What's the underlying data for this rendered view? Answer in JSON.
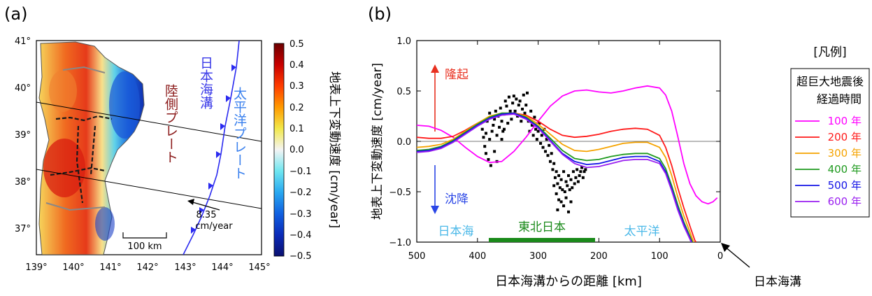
{
  "panel_a": {
    "label": "(a)",
    "lon_ticks": [
      "139°",
      "140°",
      "141°",
      "142°",
      "143°",
      "144°",
      "145°"
    ],
    "lat_ticks": [
      "41°",
      "40°",
      "39°",
      "38°",
      "37°"
    ],
    "scale_bar": "100 km",
    "arrow_value": "8.35",
    "arrow_unit": "cm/year",
    "land_plate": "陸側プレート",
    "trench": "日本海溝",
    "pacific_plate": "太平洋プレート",
    "colorbar": {
      "ticks": [
        "0.5",
        "0.4",
        "0.3",
        "0.2",
        "0.1",
        "0.0",
        "−0.1",
        "−0.2",
        "−0.3",
        "−0.4",
        "−0.5"
      ],
      "label": "地表上下変動速度 [cm/year]"
    }
  },
  "panel_b": {
    "label": "(b)",
    "xlabel": "日本海溝からの距離 [km]",
    "ylabel": "地表上下変動速度 [cm/year]",
    "x_ticks": [
      "500",
      "400",
      "300",
      "200",
      "100",
      "0"
    ],
    "y_ticks": [
      "1.0",
      "0.5",
      "0.0",
      "−0.5",
      "−1.0"
    ],
    "uplift": "隆起",
    "subsidence": "沈降",
    "region_japan_sea": "日本海",
    "region_tohoku": "東北日本",
    "region_pacific": "太平洋",
    "trench_label": "日本海溝"
  },
  "legend": {
    "title": "[凡例]",
    "header_line1": "超巨大地震後",
    "header_line2": "経過時間",
    "entries": [
      {
        "label": "100 年",
        "color": "#ff00ff"
      },
      {
        "label": "200 年",
        "color": "#ff1a1a"
      },
      {
        "label": "300 年",
        "color": "#f5a300"
      },
      {
        "label": "400 年",
        "color": "#1f9a1f"
      },
      {
        "label": "500 年",
        "color": "#1414e6"
      },
      {
        "label": "600 年",
        "color": "#9a1ff0"
      }
    ]
  },
  "chart_data": {
    "type": "line",
    "xlabel": "日本海溝からの距離 [km]",
    "ylabel": "地表上下変動速度 [cm/year]",
    "xlim": [
      500,
      0
    ],
    "ylim": [
      -1.0,
      1.0
    ],
    "grid": false,
    "series": [
      {
        "name": "100 年",
        "color": "#ff00ff",
        "points": [
          [
            500,
            0.16
          ],
          [
            480,
            0.15
          ],
          [
            460,
            0.11
          ],
          [
            440,
            0.04
          ],
          [
            420,
            -0.06
          ],
          [
            400,
            -0.15
          ],
          [
            380,
            -0.21
          ],
          [
            360,
            -0.2
          ],
          [
            340,
            -0.1
          ],
          [
            320,
            0.04
          ],
          [
            300,
            0.2
          ],
          [
            280,
            0.35
          ],
          [
            260,
            0.45
          ],
          [
            240,
            0.5
          ],
          [
            220,
            0.51
          ],
          [
            200,
            0.49
          ],
          [
            180,
            0.48
          ],
          [
            160,
            0.5
          ],
          [
            140,
            0.53
          ],
          [
            120,
            0.55
          ],
          [
            100,
            0.53
          ],
          [
            90,
            0.46
          ],
          [
            80,
            0.3
          ],
          [
            70,
            0.05
          ],
          [
            60,
            -0.22
          ],
          [
            50,
            -0.42
          ],
          [
            40,
            -0.54
          ],
          [
            30,
            -0.6
          ],
          [
            20,
            -0.62
          ],
          [
            12,
            -0.6
          ],
          [
            5,
            -0.56
          ]
        ]
      },
      {
        "name": "200 年",
        "color": "#ff1a1a",
        "points": [
          [
            500,
            0.04
          ],
          [
            480,
            0.03
          ],
          [
            460,
            0.03
          ],
          [
            440,
            0.05
          ],
          [
            420,
            0.11
          ],
          [
            400,
            0.18
          ],
          [
            380,
            0.24
          ],
          [
            360,
            0.27
          ],
          [
            340,
            0.28
          ],
          [
            320,
            0.26
          ],
          [
            300,
            0.2
          ],
          [
            280,
            0.12
          ],
          [
            260,
            0.06
          ],
          [
            240,
            0.04
          ],
          [
            220,
            0.05
          ],
          [
            200,
            0.07
          ],
          [
            180,
            0.1
          ],
          [
            160,
            0.12
          ],
          [
            140,
            0.13
          ],
          [
            120,
            0.12
          ],
          [
            100,
            0.06
          ],
          [
            90,
            -0.06
          ],
          [
            80,
            -0.24
          ],
          [
            70,
            -0.46
          ],
          [
            60,
            -0.66
          ],
          [
            50,
            -0.84
          ],
          [
            42,
            -0.98
          ],
          [
            40,
            -1.0
          ]
        ]
      },
      {
        "name": "300 年",
        "color": "#f5a300",
        "points": [
          [
            500,
            -0.06
          ],
          [
            480,
            -0.05
          ],
          [
            460,
            -0.03
          ],
          [
            440,
            0.02
          ],
          [
            420,
            0.1
          ],
          [
            400,
            0.18
          ],
          [
            380,
            0.25
          ],
          [
            360,
            0.28
          ],
          [
            340,
            0.28
          ],
          [
            320,
            0.25
          ],
          [
            300,
            0.17
          ],
          [
            280,
            0.07
          ],
          [
            260,
            -0.03
          ],
          [
            240,
            -0.09
          ],
          [
            220,
            -0.1
          ],
          [
            200,
            -0.08
          ],
          [
            180,
            -0.05
          ],
          [
            160,
            -0.02
          ],
          [
            140,
            -0.01
          ],
          [
            120,
            -0.01
          ],
          [
            100,
            -0.06
          ],
          [
            90,
            -0.16
          ],
          [
            80,
            -0.34
          ],
          [
            70,
            -0.55
          ],
          [
            60,
            -0.74
          ],
          [
            50,
            -0.9
          ],
          [
            44,
            -1.0
          ]
        ]
      },
      {
        "name": "400 年",
        "color": "#1f9a1f",
        "points": [
          [
            500,
            -0.09
          ],
          [
            480,
            -0.08
          ],
          [
            460,
            -0.05
          ],
          [
            440,
            0.01
          ],
          [
            420,
            0.09
          ],
          [
            400,
            0.17
          ],
          [
            380,
            0.24
          ],
          [
            360,
            0.28
          ],
          [
            340,
            0.28
          ],
          [
            320,
            0.24
          ],
          [
            300,
            0.15
          ],
          [
            280,
            0.03
          ],
          [
            260,
            -0.09
          ],
          [
            240,
            -0.17
          ],
          [
            220,
            -0.19
          ],
          [
            200,
            -0.18
          ],
          [
            180,
            -0.15
          ],
          [
            160,
            -0.13
          ],
          [
            140,
            -0.12
          ],
          [
            120,
            -0.12
          ],
          [
            100,
            -0.17
          ],
          [
            90,
            -0.27
          ],
          [
            80,
            -0.44
          ],
          [
            70,
            -0.63
          ],
          [
            60,
            -0.8
          ],
          [
            50,
            -0.94
          ],
          [
            46,
            -1.0
          ]
        ]
      },
      {
        "name": "500 年",
        "color": "#1414e6",
        "points": [
          [
            500,
            -0.1
          ],
          [
            480,
            -0.09
          ],
          [
            460,
            -0.06
          ],
          [
            440,
            0.0
          ],
          [
            420,
            0.08
          ],
          [
            400,
            0.16
          ],
          [
            380,
            0.23
          ],
          [
            360,
            0.27
          ],
          [
            340,
            0.28
          ],
          [
            320,
            0.23
          ],
          [
            300,
            0.14
          ],
          [
            280,
            0.01
          ],
          [
            260,
            -0.12
          ],
          [
            240,
            -0.2
          ],
          [
            220,
            -0.23
          ],
          [
            200,
            -0.22
          ],
          [
            180,
            -0.19
          ],
          [
            160,
            -0.16
          ],
          [
            140,
            -0.15
          ],
          [
            120,
            -0.15
          ],
          [
            100,
            -0.2
          ],
          [
            90,
            -0.3
          ],
          [
            80,
            -0.47
          ],
          [
            70,
            -0.66
          ],
          [
            60,
            -0.82
          ],
          [
            50,
            -0.96
          ],
          [
            47,
            -1.0
          ]
        ]
      },
      {
        "name": "600 年",
        "color": "#9a1ff0",
        "points": [
          [
            500,
            -0.11
          ],
          [
            480,
            -0.1
          ],
          [
            460,
            -0.07
          ],
          [
            440,
            -0.01
          ],
          [
            420,
            0.07
          ],
          [
            400,
            0.15
          ],
          [
            380,
            0.22
          ],
          [
            360,
            0.26
          ],
          [
            340,
            0.27
          ],
          [
            320,
            0.22
          ],
          [
            300,
            0.13
          ],
          [
            280,
            0.0
          ],
          [
            260,
            -0.13
          ],
          [
            240,
            -0.22
          ],
          [
            220,
            -0.26
          ],
          [
            200,
            -0.25
          ],
          [
            180,
            -0.22
          ],
          [
            160,
            -0.19
          ],
          [
            140,
            -0.18
          ],
          [
            120,
            -0.18
          ],
          [
            100,
            -0.22
          ],
          [
            90,
            -0.32
          ],
          [
            80,
            -0.49
          ],
          [
            70,
            -0.68
          ],
          [
            60,
            -0.84
          ],
          [
            50,
            -0.97
          ],
          [
            48,
            -1.0
          ]
        ]
      }
    ],
    "observations": [
      [
        395,
        0.18
      ],
      [
        392,
        0.12
      ],
      [
        390,
        0.04
      ],
      [
        388,
        -0.05
      ],
      [
        386,
        -0.12
      ],
      [
        384,
        0.2
      ],
      [
        382,
        -0.18
      ],
      [
        380,
        0.28
      ],
      [
        378,
        -0.24
      ],
      [
        376,
        0.1
      ],
      [
        374,
        0.16
      ],
      [
        372,
        0.22
      ],
      [
        370,
        0.3
      ],
      [
        368,
        0.06
      ],
      [
        366,
        0.25
      ],
      [
        364,
        0.14
      ],
      [
        362,
        0.33
      ],
      [
        360,
        0.2
      ],
      [
        358,
        0.1
      ],
      [
        356,
        0.27
      ],
      [
        354,
        0.4
      ],
      [
        352,
        0.35
      ],
      [
        350,
        0.18
      ],
      [
        348,
        0.44
      ],
      [
        346,
        0.3
      ],
      [
        344,
        0.22
      ],
      [
        342,
        0.38
      ],
      [
        340,
        0.45
      ],
      [
        338,
        0.3
      ],
      [
        336,
        0.42
      ],
      [
        334,
        0.25
      ],
      [
        332,
        0.36
      ],
      [
        330,
        0.4
      ],
      [
        328,
        0.2
      ],
      [
        326,
        0.32
      ],
      [
        324,
        0.46
      ],
      [
        322,
        0.28
      ],
      [
        320,
        0.36
      ],
      [
        318,
        0.48
      ],
      [
        316,
        0.2
      ],
      [
        314,
        0.1
      ],
      [
        312,
        0.3
      ],
      [
        310,
        0.16
      ],
      [
        308,
        0.06
      ],
      [
        306,
        0.24
      ],
      [
        304,
        0.12
      ],
      [
        302,
        0.02
      ],
      [
        300,
        0.1
      ],
      [
        298,
        0.18
      ],
      [
        296,
        -0.02
      ],
      [
        294,
        0.06
      ],
      [
        292,
        -0.06
      ],
      [
        290,
        0.12
      ],
      [
        288,
        -0.1
      ],
      [
        286,
        0.02
      ],
      [
        284,
        -0.14
      ],
      [
        282,
        -0.04
      ],
      [
        280,
        -0.2
      ],
      [
        278,
        -0.12
      ],
      [
        276,
        -0.28
      ],
      [
        274,
        -0.22
      ],
      [
        272,
        -0.36
      ],
      [
        270,
        -0.3
      ],
      [
        268,
        -0.42
      ],
      [
        266,
        -0.34
      ],
      [
        264,
        -0.46
      ],
      [
        262,
        -0.38
      ],
      [
        260,
        -0.48
      ],
      [
        258,
        -0.3
      ],
      [
        256,
        -0.5
      ],
      [
        254,
        -0.4
      ],
      [
        252,
        -0.44
      ],
      [
        250,
        -0.34
      ],
      [
        248,
        -0.48
      ],
      [
        246,
        -0.38
      ],
      [
        244,
        -0.46
      ],
      [
        242,
        -0.3
      ],
      [
        240,
        -0.42
      ],
      [
        238,
        -0.36
      ],
      [
        236,
        -0.28
      ],
      [
        234,
        -0.4
      ],
      [
        232,
        -0.34
      ],
      [
        230,
        -0.3
      ],
      [
        228,
        -0.26
      ],
      [
        226,
        -0.36
      ],
      [
        224,
        -0.3
      ],
      [
        222,
        -0.28
      ],
      [
        270,
        -0.52
      ],
      [
        266,
        -0.58
      ],
      [
        262,
        -0.6
      ],
      [
        258,
        -0.64
      ],
      [
        254,
        -0.56
      ],
      [
        250,
        -0.7
      ],
      [
        268,
        -0.68
      ],
      [
        246,
        -0.6
      ],
      [
        274,
        -0.44
      ],
      [
        372,
        -0.1
      ],
      [
        368,
        -0.2
      ],
      [
        380,
        0.02
      ],
      [
        386,
        0.08
      ],
      [
        360,
        0.02
      ],
      [
        356,
        0.12
      ]
    ]
  }
}
